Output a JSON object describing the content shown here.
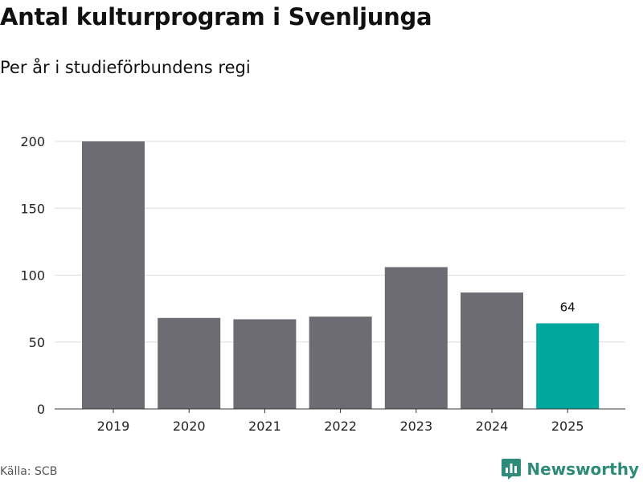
{
  "header": {
    "title": "Antal kulturprogram i Svenljunga",
    "subtitle": "Per år i studieförbundens regi"
  },
  "chart_data": {
    "type": "bar",
    "title": "Antal kulturprogram i Svenljunga",
    "subtitle": "Per år i studieförbundens regi",
    "xlabel": "",
    "ylabel": "",
    "categories": [
      "2019",
      "2020",
      "2021",
      "2022",
      "2023",
      "2024",
      "2025"
    ],
    "values": [
      200,
      68,
      67,
      69,
      106,
      87,
      64
    ],
    "ylim": [
      0,
      200
    ],
    "yticks": [
      0,
      50,
      100,
      150,
      200
    ],
    "grid": true,
    "bar_color": "#6d6c72",
    "highlight_color": "#00a79d",
    "highlight_index": 6,
    "data_labels": [
      {
        "index": 6,
        "text": "64"
      }
    ]
  },
  "footer": {
    "source": "Källa: SCB",
    "brand": "Newsworthy",
    "brand_color": "#2e8b7a",
    "brand_icon": "newsworthy-logo-icon"
  }
}
